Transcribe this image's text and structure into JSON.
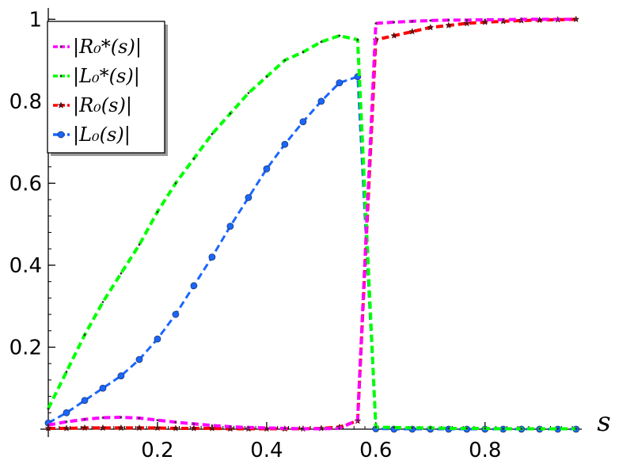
{
  "chart_data": {
    "type": "line",
    "title": "",
    "xlabel": "s",
    "ylabel": "",
    "xlim": [
      0,
      0.97
    ],
    "ylim": [
      0,
      1.02
    ],
    "x_ticks": [
      0.2,
      0.4,
      0.6,
      0.8
    ],
    "x_tick_labels": [
      "0.2",
      "0.4",
      "0.6",
      "0.8"
    ],
    "y_ticks": [
      0.2,
      0.4,
      0.6,
      0.8,
      1.0
    ],
    "y_tick_labels": [
      "0.2",
      "0.4",
      "0.6",
      "0.8",
      "1"
    ],
    "grid": false,
    "legend": {
      "placement": "top-left",
      "entries": [
        "|R₀*(s)|",
        "|L₀*(s)|",
        "|R₀(s)|",
        "|L₀(s)|"
      ]
    },
    "series": [
      {
        "name": "|R₀*(s)|",
        "color": "#ff00ff",
        "marker": "dot",
        "x": [
          0,
          0.0333,
          0.0667,
          0.1,
          0.1333,
          0.1667,
          0.2,
          0.2333,
          0.2667,
          0.3,
          0.3333,
          0.3667,
          0.4,
          0.4333,
          0.4667,
          0.5,
          0.5333,
          0.5667,
          0.6,
          0.6333,
          0.6667,
          0.7,
          0.7333,
          0.7667,
          0.8,
          0.8333,
          0.8667,
          0.9,
          0.9333,
          0.9667
        ],
        "y": [
          0.01,
          0.018,
          0.024,
          0.028,
          0.029,
          0.027,
          0.022,
          0.017,
          0.013,
          0.009,
          0.006,
          0.004,
          0.003,
          0.002,
          0.001,
          0.001,
          0.002,
          0.022,
          0.99,
          0.993,
          0.995,
          0.997,
          0.998,
          0.998,
          0.999,
          0.999,
          1.0,
          1.0,
          1.0,
          1.0
        ]
      },
      {
        "name": "|L₀*(s)|",
        "color": "#00ff00",
        "marker": "dot",
        "x": [
          0,
          0.0333,
          0.0667,
          0.1,
          0.1333,
          0.1667,
          0.2,
          0.2333,
          0.2667,
          0.3,
          0.3333,
          0.3667,
          0.4,
          0.4333,
          0.4667,
          0.5,
          0.5333,
          0.5667,
          0.6,
          0.6333,
          0.6667,
          0.7,
          0.7333,
          0.7667,
          0.8,
          0.8333,
          0.8667,
          0.9,
          0.9333,
          0.9667
        ],
        "y": [
          0.05,
          0.14,
          0.23,
          0.31,
          0.38,
          0.45,
          0.53,
          0.6,
          0.66,
          0.72,
          0.77,
          0.82,
          0.86,
          0.9,
          0.92,
          0.945,
          0.96,
          0.95,
          0.005,
          0.004,
          0.003,
          0.003,
          0.002,
          0.002,
          0.002,
          0.001,
          0.001,
          0.001,
          0.001,
          0.001
        ]
      },
      {
        "name": "|R₀(s)|",
        "color": "#ff0000",
        "marker": "star",
        "x": [
          0,
          0.0333,
          0.0667,
          0.1,
          0.1333,
          0.1667,
          0.2,
          0.2333,
          0.2667,
          0.3,
          0.3333,
          0.3667,
          0.4,
          0.4333,
          0.4667,
          0.5,
          0.5333,
          0.5667,
          0.6,
          0.6333,
          0.6667,
          0.7,
          0.7333,
          0.7667,
          0.8,
          0.8333,
          0.8667,
          0.9,
          0.9333,
          0.9667
        ],
        "y": [
          0.002,
          0.002,
          0.003,
          0.003,
          0.003,
          0.003,
          0.003,
          0.002,
          0.002,
          0.002,
          0.001,
          0.001,
          0.001,
          0.001,
          0.001,
          0.002,
          0.005,
          0.02,
          0.95,
          0.96,
          0.97,
          0.98,
          0.985,
          0.99,
          0.993,
          0.995,
          0.997,
          0.998,
          0.999,
          1.0
        ]
      },
      {
        "name": "|L₀(s)|",
        "color": "#1a66ff",
        "marker": "circle",
        "x": [
          0,
          0.0333,
          0.0667,
          0.1,
          0.1333,
          0.1667,
          0.2,
          0.2333,
          0.2667,
          0.3,
          0.3333,
          0.3667,
          0.4,
          0.4333,
          0.4667,
          0.5,
          0.5333,
          0.5667,
          0.6,
          0.6333,
          0.6667,
          0.7,
          0.7333,
          0.7667,
          0.8,
          0.8333,
          0.8667,
          0.9,
          0.9333,
          0.9667
        ],
        "y": [
          0.015,
          0.04,
          0.07,
          0.1,
          0.13,
          0.17,
          0.22,
          0.28,
          0.35,
          0.42,
          0.495,
          0.565,
          0.635,
          0.695,
          0.75,
          0.8,
          0.845,
          0.86,
          0.001,
          0.0,
          0.0,
          0.0,
          0.0,
          0.0,
          0.0,
          0.0,
          0.0,
          0.0,
          0.0,
          0.0
        ]
      }
    ]
  }
}
